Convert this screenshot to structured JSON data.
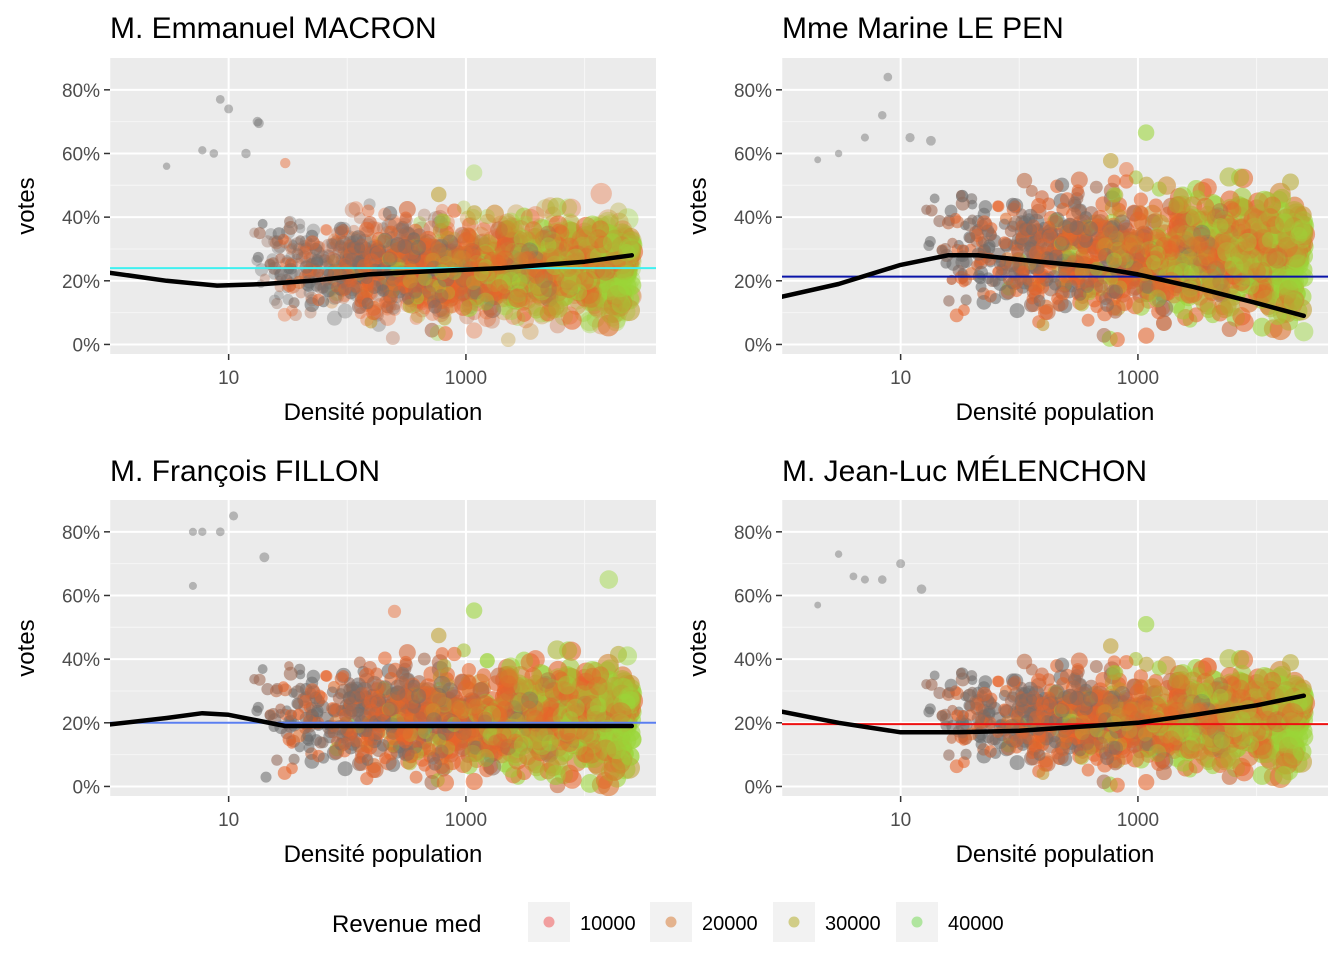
{
  "chart_data": [
    {
      "type": "scatter",
      "title": "M. Emmanuel MACRON",
      "xlabel": "Densité population",
      "ylabel": "votes",
      "x_scale": "log10",
      "xlim": [
        1,
        40000
      ],
      "ylim": [
        -3,
        90
      ],
      "x_ticks": [
        10,
        1000
      ],
      "x_tick_labels": [
        "10",
        "1000"
      ],
      "y_ticks": [
        0,
        20,
        40,
        60,
        80
      ],
      "y_tick_labels": [
        "0%",
        "20%",
        "40%",
        "60%",
        "80%"
      ],
      "hline": {
        "value": 24,
        "color": "#3ff0f0"
      },
      "smooth_line": {
        "x": [
          1,
          3,
          8,
          20,
          50,
          150,
          500,
          2000,
          10000,
          25000
        ],
        "y": [
          22.5,
          20,
          18.5,
          19,
          20,
          22,
          23,
          24,
          26,
          28
        ]
      },
      "cloud": {
        "y_center": 24,
        "y_spread": 7,
        "outliers": [
          [
            8.5,
            77
          ],
          [
            10,
            74
          ],
          [
            18,
            69.5
          ],
          [
            17.5,
            70
          ],
          [
            6,
            61
          ],
          [
            7.5,
            60
          ],
          [
            14,
            60
          ],
          [
            30,
            57
          ],
          [
            3,
            56
          ],
          [
            150,
            42
          ]
        ]
      },
      "grid": true
    },
    {
      "type": "scatter",
      "title": "Mme Marine LE PEN",
      "xlabel": "Densité population",
      "ylabel": "votes",
      "x_scale": "log10",
      "xlim": [
        1,
        40000
      ],
      "ylim": [
        -3,
        90
      ],
      "x_ticks": [
        10,
        1000
      ],
      "x_tick_labels": [
        "10",
        "1000"
      ],
      "y_ticks": [
        0,
        20,
        40,
        60,
        80
      ],
      "y_tick_labels": [
        "0%",
        "20%",
        "40%",
        "60%",
        "80%"
      ],
      "hline": {
        "value": 21.3,
        "color": "#0a14a8"
      },
      "smooth_line": {
        "x": [
          1,
          3,
          10,
          25,
          45,
          150,
          400,
          1000,
          3000,
          10000,
          25000
        ],
        "y": [
          15,
          19,
          25,
          28,
          28,
          26,
          24.5,
          22,
          18,
          13,
          9
        ]
      },
      "cloud": {
        "y_center": 28,
        "y_spread": 9,
        "outliers": [
          [
            7.8,
            84
          ],
          [
            7,
            72
          ],
          [
            5,
            65
          ],
          [
            12,
            65
          ],
          [
            18,
            64
          ],
          [
            800,
            55
          ],
          [
            2,
            58
          ],
          [
            3,
            60
          ],
          [
            25000,
            4
          ],
          [
            15000,
            9
          ]
        ]
      },
      "grid": true
    },
    {
      "type": "scatter",
      "title": "M. François FILLON",
      "xlabel": "Densité population",
      "ylabel": "votes",
      "x_scale": "log10",
      "xlim": [
        1,
        40000
      ],
      "ylim": [
        -3,
        90
      ],
      "x_ticks": [
        10,
        1000
      ],
      "x_tick_labels": [
        "10",
        "1000"
      ],
      "y_ticks": [
        0,
        20,
        40,
        60,
        80
      ],
      "y_tick_labels": [
        "0%",
        "20%",
        "40%",
        "60%",
        "80%"
      ],
      "hline": {
        "value": 20,
        "color": "#5a7ef0"
      },
      "smooth_line": {
        "x": [
          1,
          3,
          6,
          10,
          30,
          100,
          500,
          2000,
          10000,
          25000
        ],
        "y": [
          19.5,
          21.5,
          23,
          22.5,
          19,
          19,
          19,
          19,
          19,
          19
        ]
      },
      "cloud": {
        "y_center": 21,
        "y_spread": 8,
        "outliers": [
          [
            11,
            85
          ],
          [
            6,
            80
          ],
          [
            5,
            80
          ],
          [
            8.5,
            80
          ],
          [
            20,
            72
          ],
          [
            16000,
            65
          ],
          [
            5,
            63
          ],
          [
            250,
            55
          ],
          [
            23000,
            41
          ]
        ]
      },
      "grid": true
    },
    {
      "type": "scatter",
      "title": "M. Jean-Luc MÉLENCHON",
      "xlabel": "Densité population",
      "ylabel": "votes",
      "x_scale": "log10",
      "xlim": [
        1,
        40000
      ],
      "ylim": [
        -3,
        90
      ],
      "x_ticks": [
        10,
        1000
      ],
      "x_tick_labels": [
        "10",
        "1000"
      ],
      "y_ticks": [
        0,
        20,
        40,
        60,
        80
      ],
      "y_tick_labels": [
        "0%",
        "20%",
        "40%",
        "60%",
        "80%"
      ],
      "hline": {
        "value": 19.6,
        "color": "#ee1111"
      },
      "smooth_line": {
        "x": [
          1,
          3,
          10,
          30,
          100,
          400,
          1000,
          3000,
          10000,
          25000
        ],
        "y": [
          23.5,
          20,
          17,
          17,
          17.5,
          19,
          20,
          22.5,
          25.5,
          28.5
        ]
      },
      "cloud": {
        "y_center": 21,
        "y_spread": 7,
        "outliers": [
          [
            10,
            70
          ],
          [
            3,
            73
          ],
          [
            4,
            66
          ],
          [
            5,
            65
          ],
          [
            7,
            65
          ],
          [
            15,
            62
          ],
          [
            2,
            57
          ],
          [
            17000,
            3.5
          ]
        ]
      },
      "grid": true
    }
  ],
  "legend": {
    "title": "Revenue med",
    "position": "bottom",
    "items": [
      {
        "label": "10000",
        "color": "#f0898a"
      },
      {
        "label": "20000",
        "color": "#e0a274"
      },
      {
        "label": "30000",
        "color": "#c8c36c"
      },
      {
        "label": "40000",
        "color": "#9fe18a"
      }
    ]
  },
  "colors": {
    "panel_background": "#ebebeb",
    "grid": "#ffffff",
    "low_income_points": "#6e6e6e",
    "mid_income_points": "#e8632a",
    "high_income_points": "#9bd63a",
    "smooth_line": "#000000"
  }
}
